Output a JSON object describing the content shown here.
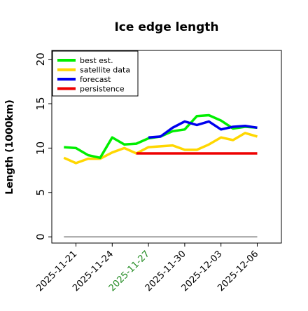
{
  "chart_data": {
    "type": "line",
    "title": "Ice edge length",
    "xlabel": "",
    "ylabel": "Length (1000km)",
    "ylim": [
      -0.7,
      21
    ],
    "yticks": [
      0,
      5,
      10,
      15,
      20
    ],
    "xticks": [
      "2025-11-21",
      "2025-11-24",
      "2025-11-27",
      "2025-11-30",
      "2025-12-03",
      "2025-12-06"
    ],
    "highlight_tick": "2025-11-27",
    "highlight_color": "#228B22",
    "x_start": "2025-11-19",
    "x_end": "2025-12-08",
    "legend_position": "top-left",
    "grid": false,
    "series": [
      {
        "name": "best est.",
        "color": "#00ee00",
        "x": [
          "2025-11-20",
          "2025-11-21",
          "2025-11-22",
          "2025-11-23",
          "2025-11-24",
          "2025-11-25",
          "2025-11-26",
          "2025-11-27",
          "2025-11-28",
          "2025-11-29",
          "2025-11-30",
          "2025-12-01",
          "2025-12-02",
          "2025-12-03",
          "2025-12-04",
          "2025-12-05",
          "2025-12-06"
        ],
        "values": [
          10.1,
          10.0,
          9.2,
          8.9,
          11.2,
          10.4,
          10.5,
          11.1,
          11.3,
          11.9,
          12.1,
          13.6,
          13.7,
          13.1,
          12.2,
          12.4,
          12.3
        ]
      },
      {
        "name": "satellite data",
        "color": "#ffd700",
        "x": [
          "2025-11-20",
          "2025-11-21",
          "2025-11-22",
          "2025-11-23",
          "2025-11-24",
          "2025-11-25",
          "2025-11-26",
          "2025-11-27",
          "2025-11-28",
          "2025-11-29",
          "2025-11-30",
          "2025-12-01",
          "2025-12-02",
          "2025-12-03",
          "2025-12-04",
          "2025-12-05",
          "2025-12-06"
        ],
        "values": [
          8.9,
          8.3,
          8.8,
          8.8,
          9.5,
          10.0,
          9.4,
          10.1,
          10.2,
          10.3,
          9.8,
          9.8,
          10.4,
          11.2,
          10.9,
          11.7,
          11.3
        ]
      },
      {
        "name": "forecast",
        "color": "#0000ee",
        "x": [
          "2025-11-27",
          "2025-11-28",
          "2025-11-29",
          "2025-11-30",
          "2025-12-01",
          "2025-12-02",
          "2025-12-03",
          "2025-12-04",
          "2025-12-05",
          "2025-12-06"
        ],
        "values": [
          11.2,
          11.3,
          12.3,
          13.0,
          12.6,
          13.0,
          12.1,
          12.4,
          12.5,
          12.3
        ]
      },
      {
        "name": "persistence",
        "color": "#ee0000",
        "x": [
          "2025-11-26",
          "2025-12-06"
        ],
        "values": [
          9.4,
          9.4
        ]
      },
      {
        "name": "",
        "color": "#888888",
        "x": [
          "2025-11-20",
          "2025-12-06"
        ],
        "values": [
          0,
          0
        ]
      }
    ]
  }
}
